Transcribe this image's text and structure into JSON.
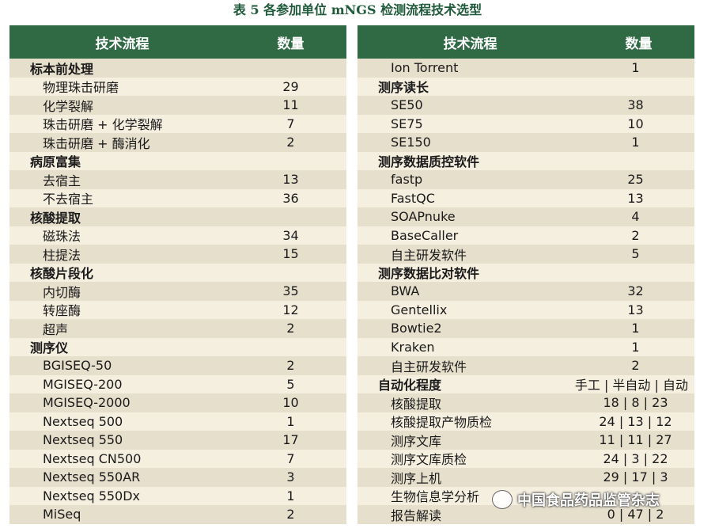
{
  "caption": "表 5 各参加单位 mNGS 检测流程技术选型",
  "headers": {
    "process": "技术流程",
    "count": "数量"
  },
  "left_rows": [
    {
      "label": "标本前处理",
      "value": "",
      "cat": true
    },
    {
      "label": "物理珠击研磨",
      "value": "29"
    },
    {
      "label": "化学裂解",
      "value": "11"
    },
    {
      "label": "珠击研磨 + 化学裂解",
      "value": "7"
    },
    {
      "label": "珠击研磨 + 酶消化",
      "value": "2"
    },
    {
      "label": "病原富集",
      "value": "",
      "cat": true
    },
    {
      "label": "去宿主",
      "value": "13"
    },
    {
      "label": "不去宿主",
      "value": "36"
    },
    {
      "label": "核酸提取",
      "value": "",
      "cat": true
    },
    {
      "label": "磁珠法",
      "value": "34"
    },
    {
      "label": "柱提法",
      "value": "15"
    },
    {
      "label": "核酸片段化",
      "value": "",
      "cat": true
    },
    {
      "label": "内切酶",
      "value": "35"
    },
    {
      "label": "转座酶",
      "value": "12"
    },
    {
      "label": "超声",
      "value": "2"
    },
    {
      "label": "测序仪",
      "value": "",
      "cat": true
    },
    {
      "label": "BGISEQ-50",
      "value": "2"
    },
    {
      "label": "MGISEQ-200",
      "value": "5"
    },
    {
      "label": "MGISEQ-2000",
      "value": "10"
    },
    {
      "label": "Nextseq 500",
      "value": "1"
    },
    {
      "label": "Nextseq 550",
      "value": "17"
    },
    {
      "label": "Nextseq CN500",
      "value": "7"
    },
    {
      "label": "Nextseq 550AR",
      "value": "3"
    },
    {
      "label": "Nextseq 550Dx",
      "value": "1"
    },
    {
      "label": "MiSeq",
      "value": "2"
    }
  ],
  "right_rows": [
    {
      "label": "Ion Torrent",
      "value": "1"
    },
    {
      "label": "测序读长",
      "value": "",
      "cat": true
    },
    {
      "label": "SE50",
      "value": "38"
    },
    {
      "label": "SE75",
      "value": "10"
    },
    {
      "label": "SE150",
      "value": "1"
    },
    {
      "label": "测序数据质控软件",
      "value": "",
      "cat": true
    },
    {
      "label": "fastp",
      "value": "25"
    },
    {
      "label": "FastQC",
      "value": "13"
    },
    {
      "label": "SOAPnuke",
      "value": "4"
    },
    {
      "label": "BaseCaller",
      "value": "2"
    },
    {
      "label": "自主研发软件",
      "value": "5"
    },
    {
      "label": "测序数据比对软件",
      "value": "",
      "cat": true
    },
    {
      "label": "BWA",
      "value": "32"
    },
    {
      "label": "Gentellix",
      "value": "13"
    },
    {
      "label": "Bowtie2",
      "value": "1"
    },
    {
      "label": "Kraken",
      "value": "1"
    },
    {
      "label": "自主研发软件",
      "value": "2"
    },
    {
      "label": "自动化程度",
      "value": "手工 | 半自动 | 自动",
      "cat": true
    },
    {
      "label": "核酸提取",
      "value": "18 | 8 | 23"
    },
    {
      "label": "核酸提取产物质检",
      "value": "24 | 13 | 12"
    },
    {
      "label": "测序文库",
      "value": "11 | 11 | 27"
    },
    {
      "label": "测序文库质检",
      "value": "24 | 3 | 22"
    },
    {
      "label": "测序上机",
      "value": "29 | 17 | 3"
    },
    {
      "label": "生物信息学分析",
      "value": ""
    },
    {
      "label": "报告解读",
      "value": "0 | 47 | 2"
    }
  ],
  "watermark": "中国食品药品监管杂志"
}
